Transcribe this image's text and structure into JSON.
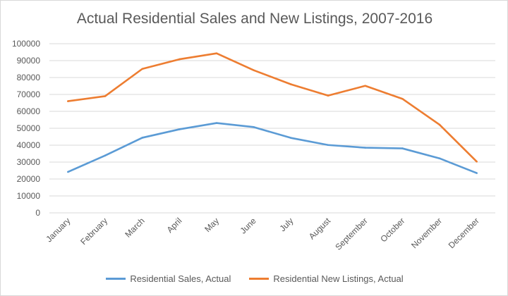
{
  "chart_data": {
    "type": "line",
    "title": "Actual Residential Sales and New Listings, 2007-2016",
    "categories": [
      "January",
      "February",
      "March",
      "April",
      "May",
      "June",
      "July",
      "August",
      "September",
      "October",
      "November",
      "December"
    ],
    "ylim": [
      0,
      100000
    ],
    "yticks": [
      "0",
      "10000",
      "20000",
      "30000",
      "40000",
      "50000",
      "60000",
      "70000",
      "80000",
      "90000",
      "100000"
    ],
    "grid": true,
    "legend": "bottom",
    "series": [
      {
        "name": "Residential Sales, Actual",
        "color": "#5b9bd5",
        "values": [
          24200,
          33900,
          44400,
          49400,
          53100,
          50700,
          44300,
          40100,
          38500,
          38100,
          32200,
          23500
        ]
      },
      {
        "name": "Residential New Listings, Actual",
        "color": "#ed7d31",
        "values": [
          66000,
          69000,
          85100,
          90800,
          94300,
          84300,
          76000,
          69300,
          75100,
          67400,
          52100,
          30300
        ]
      }
    ]
  }
}
